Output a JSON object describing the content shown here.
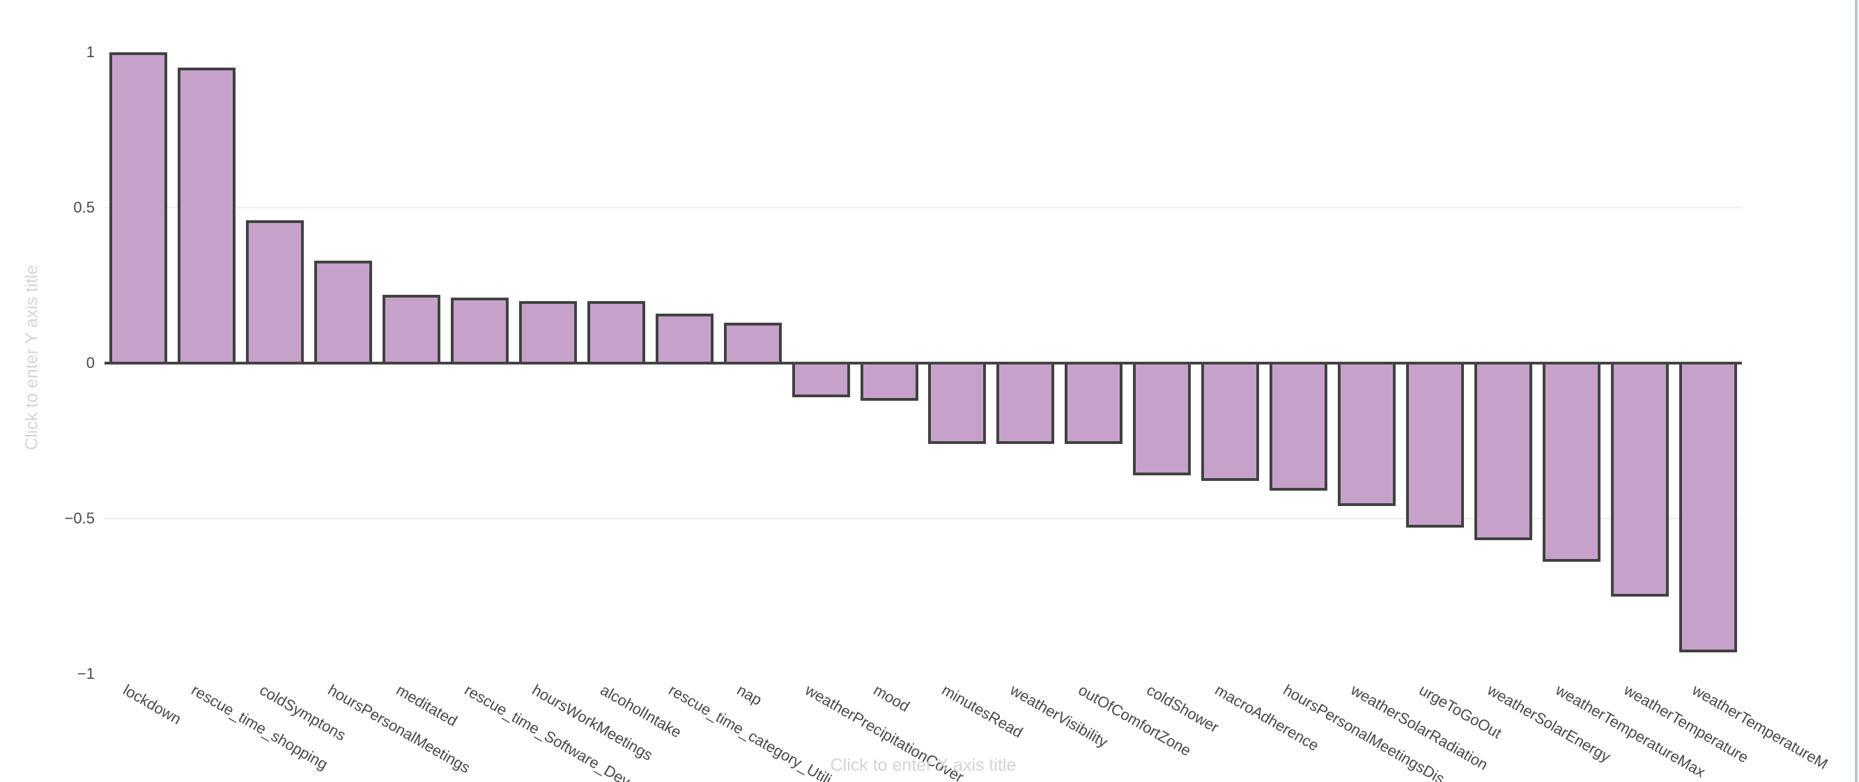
{
  "chart_data": {
    "type": "bar",
    "title": "",
    "categories": [
      "lockdown",
      "rescue_time_shopping",
      "coldSymptons",
      "hoursPersonalMeetings",
      "meditated",
      "rescue_time_Software_Dev",
      "hoursWorkMeetings",
      "alcoholIntake",
      "rescue_time_category_Utili",
      "nap",
      "weatherPrecipitationCover",
      "mood",
      "minutesRead",
      "weatherVisibility",
      "outOfComfortZone",
      "coldShower",
      "macroAdherence",
      "hoursPersonalMeetingsDis",
      "weatherSolarRadiation",
      "urgeToGoOut",
      "weatherSolarEnergy",
      "weatherTemperatureMax",
      "weatherTemperature",
      "weatherTemperatureM"
    ],
    "values": [
      1.0,
      0.95,
      0.46,
      0.33,
      0.22,
      0.21,
      0.2,
      0.2,
      0.16,
      0.13,
      -0.11,
      -0.12,
      -0.26,
      -0.26,
      -0.26,
      -0.36,
      -0.38,
      -0.41,
      -0.46,
      -0.53,
      -0.57,
      -0.64,
      -0.75,
      -0.93
    ],
    "y_ticks": [
      {
        "label": "1",
        "value": 1
      },
      {
        "label": "0.5",
        "value": 0.5
      },
      {
        "label": "0",
        "value": 0
      },
      {
        "label": "−0.5",
        "value": -0.5
      },
      {
        "label": "−1",
        "value": -1
      }
    ],
    "grid_values": [
      0.5,
      -0.5
    ],
    "ylim": [
      -1,
      1
    ],
    "legend_position": "none",
    "xlabel": "",
    "ylabel": "",
    "x_axis_title_placeholder": "Click to enter X axis title",
    "y_axis_title_placeholder": "Click to enter Y axis title",
    "colors": {
      "bar_fill": "#c6a2cb",
      "bar_border": "#414141",
      "zero_line": "#444444",
      "gridline": "#ededed",
      "tick_text": "#484848",
      "placeholder_text": "#d4d4d4",
      "pane_border": "#b9c6d2",
      "background": "#ffffff"
    }
  }
}
